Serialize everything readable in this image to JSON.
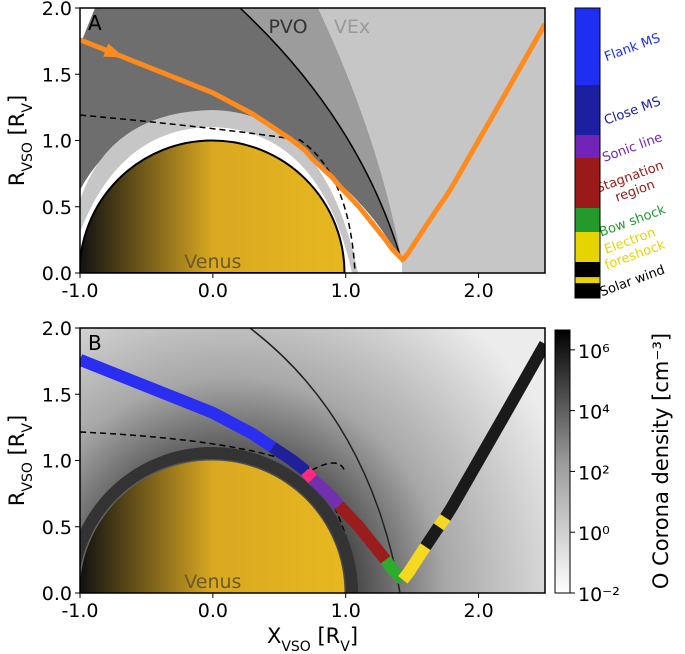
{
  "chart_data": [
    {
      "type": "line",
      "panel_label": "A",
      "y_label": [
        "R",
        "VSO",
        " [R",
        "V",
        "]"
      ],
      "xlim": [
        -1.0,
        2.5
      ],
      "ylim": [
        0,
        2.0
      ],
      "xticks": [
        {
          "value": -1,
          "label": "-1.0"
        },
        {
          "value": 0,
          "label": "0.0"
        },
        {
          "value": 1,
          "label": "1.0"
        },
        {
          "value": 2,
          "label": "2.0"
        }
      ],
      "yticks": [
        {
          "value": 0,
          "label": "0.0"
        },
        {
          "value": 0.5,
          "label": "0.5"
        },
        {
          "value": 1,
          "label": "1.0"
        },
        {
          "value": 1.5,
          "label": "1.5"
        },
        {
          "value": 2,
          "label": "2.0"
        }
      ],
      "x": [
        -1.0,
        -0.5,
        0,
        0.3,
        0.45,
        0.6,
        0.7,
        0.75,
        0.9,
        0.95,
        1.1,
        1.3,
        1.35,
        1.43,
        1.47,
        1.6,
        1.7,
        1.75,
        1.8,
        2.0,
        2.2,
        2.5
      ],
      "series": [
        {
          "color": "#ff8a1e",
          "values": [
            1.76,
            1.56,
            1.36,
            1.2,
            1.1,
            1.0,
            0.92,
            0.86,
            0.72,
            0.66,
            0.5,
            0.25,
            0.18,
            0.1,
            0.15,
            0.35,
            0.5,
            0.57,
            0.65,
            1.0,
            1.35,
            1.88
          ]
        }
      ],
      "annotations": {
        "pvo": "PVO",
        "vex": "VEx",
        "planet": "Venus"
      },
      "regions": [
        {
          "label": [
            "Flank MS"
          ],
          "color": "#1f2ff2"
        },
        {
          "label": [
            "Close MS"
          ],
          "color": "#1c20a0"
        },
        {
          "label": [
            "Sonic line"
          ],
          "color": "#7324b8"
        },
        {
          "label": [
            "Stagnation",
            "region"
          ],
          "color": "#9a1a1a"
        },
        {
          "label": [
            "Bow shock"
          ],
          "color": "#239a2b"
        },
        {
          "label": [
            "Electron",
            "foreshock"
          ],
          "color": "#e6d400"
        },
        {
          "label": [
            "Solar wind"
          ],
          "color": "#000000"
        }
      ]
    },
    {
      "type": "line",
      "panel_label": "B",
      "x_label": [
        "X",
        "VSO",
        " [R",
        "V",
        "]"
      ],
      "y_label": [
        "R",
        "VSO",
        " [R",
        "V",
        "]"
      ],
      "xlim": [
        -1.0,
        2.5
      ],
      "ylim": [
        0,
        2.0
      ],
      "xticks": [
        {
          "value": -1,
          "label": "-1.0"
        },
        {
          "value": 0,
          "label": "0.0"
        },
        {
          "value": 1,
          "label": "1.0"
        },
        {
          "value": 2,
          "label": "2.0"
        }
      ],
      "yticks": [
        {
          "value": 0,
          "label": "0.0"
        },
        {
          "value": 0.5,
          "label": "0.5"
        },
        {
          "value": 1,
          "label": "1.0"
        },
        {
          "value": 1.5,
          "label": "1.5"
        },
        {
          "value": 2,
          "label": "2.0"
        }
      ],
      "series": [
        {
          "color": "#2a2ef0",
          "x": [
            -1.0,
            -0.5,
            0,
            0.3,
            0.45
          ],
          "values": [
            1.76,
            1.56,
            1.36,
            1.2,
            1.1
          ]
        },
        {
          "color": "#20209a",
          "x": [
            0.45,
            0.6,
            0.7
          ],
          "values": [
            1.1,
            1.0,
            0.92
          ]
        },
        {
          "color": "#ff2a80",
          "x": [
            0.7,
            0.75
          ],
          "values": [
            0.92,
            0.86
          ]
        },
        {
          "color": "#7030b0",
          "x": [
            0.75,
            0.9,
            0.95
          ],
          "values": [
            0.86,
            0.72,
            0.66
          ]
        },
        {
          "color": "#9a1c1c",
          "x": [
            0.95,
            1.1,
            1.3
          ],
          "values": [
            0.66,
            0.5,
            0.25
          ]
        },
        {
          "color": "#2eaa2e",
          "x": [
            1.3,
            1.35,
            1.43
          ],
          "values": [
            0.25,
            0.18,
            0.1
          ]
        },
        {
          "color": "#f5d820",
          "x": [
            1.43,
            1.47,
            1.6
          ],
          "values": [
            0.1,
            0.15,
            0.35
          ]
        },
        {
          "color": "#1a1a1a",
          "x": [
            1.6,
            1.7
          ],
          "values": [
            0.35,
            0.5
          ]
        },
        {
          "color": "#f5d820",
          "x": [
            1.7,
            1.75
          ],
          "values": [
            0.5,
            0.57
          ]
        },
        {
          "color": "#1a1a1a",
          "x": [
            1.75,
            1.8,
            2.0,
            2.2,
            2.5
          ],
          "values": [
            0.57,
            0.65,
            1.0,
            1.35,
            1.88
          ]
        }
      ],
      "annotations": {
        "planet": "Venus"
      },
      "colorbar": {
        "label": "O Corona density [cm⁻³]",
        "log_scale": true,
        "lim": [
          0.01,
          4500000
        ],
        "ticks": [
          {
            "value": 0.01,
            "label": "10⁻²"
          },
          {
            "value": 1,
            "label": "10⁰"
          },
          {
            "value": 100,
            "label": "10²"
          },
          {
            "value": 10000,
            "label": "10⁴"
          },
          {
            "value": 1000000,
            "label": "10⁶"
          }
        ]
      }
    }
  ]
}
